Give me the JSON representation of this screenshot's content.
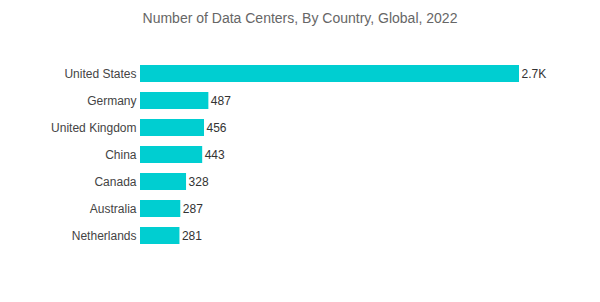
{
  "chart_data": {
    "type": "bar",
    "title": "Number of Data Centers, By Country, Global, 2022",
    "orientation": "horizontal",
    "categories": [
      "United States",
      "Germany",
      "United Kingdom",
      "China",
      "Canada",
      "Australia",
      "Netherlands"
    ],
    "values": [
      2700,
      487,
      456,
      443,
      328,
      287,
      281
    ],
    "value_labels": [
      "2.7K",
      "487",
      "456",
      "443",
      "328",
      "287",
      "281"
    ],
    "color": "#00ced1",
    "data_labels": true,
    "tick_labels": "y"
  }
}
